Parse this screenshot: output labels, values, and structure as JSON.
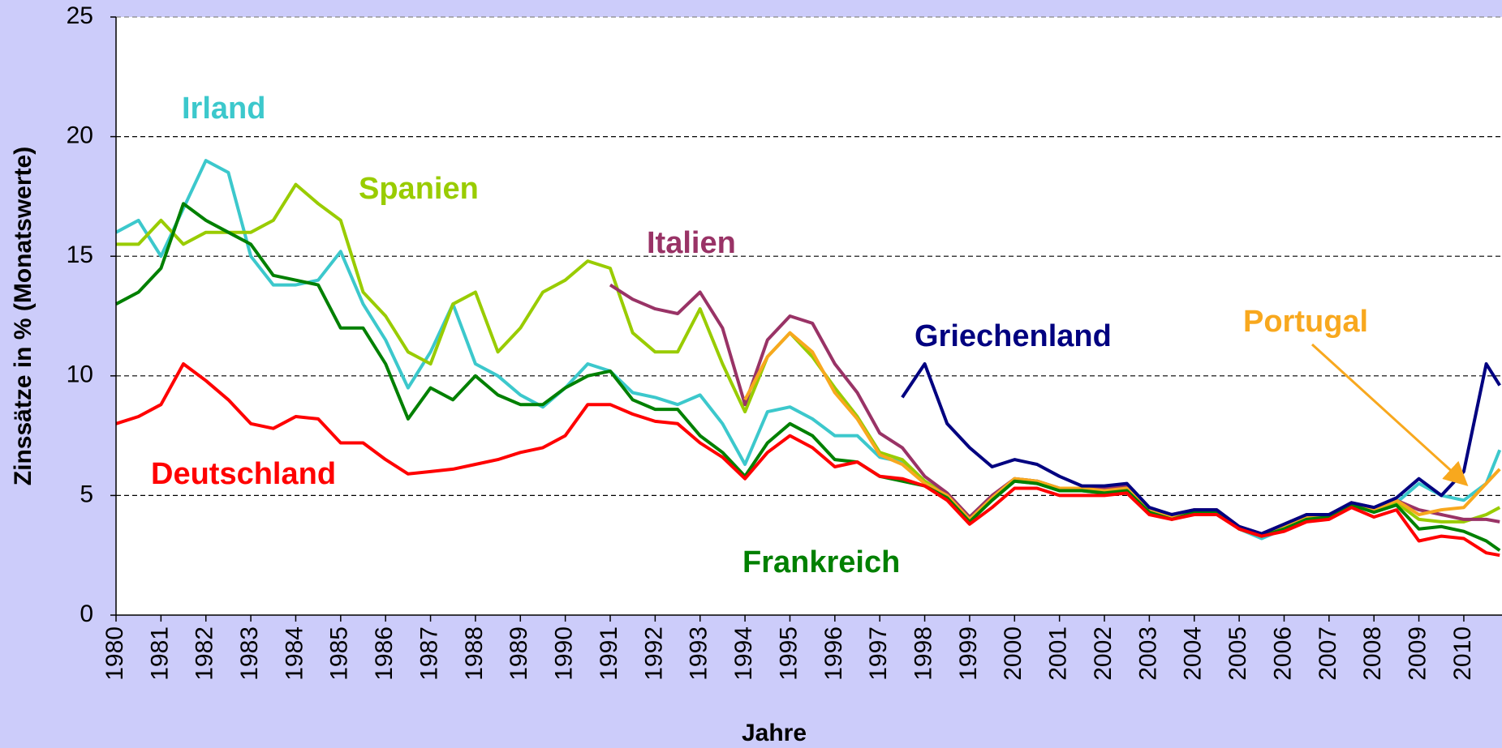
{
  "chart_data": {
    "type": "line",
    "ylabel": "Zinssätze in % (Monatswerte)",
    "xlabel": "Jahre",
    "xlim": [
      1980,
      2010.85
    ],
    "xticks": [
      1980,
      1981,
      1982,
      1983,
      1984,
      1985,
      1986,
      1987,
      1988,
      1989,
      1990,
      1991,
      1992,
      1993,
      1994,
      1995,
      1996,
      1997,
      1998,
      1999,
      2000,
      2001,
      2002,
      2003,
      2004,
      2005,
      2006,
      2007,
      2008,
      2009,
      2010
    ],
    "ylim": [
      0,
      25
    ],
    "yticks": [
      0,
      5,
      10,
      15,
      20,
      25
    ],
    "grid": true,
    "x": [
      1980,
      1980.5,
      1981,
      1981.5,
      1982,
      1982.5,
      1983,
      1983.5,
      1984,
      1984.5,
      1985,
      1985.5,
      1986,
      1986.5,
      1987,
      1987.5,
      1988,
      1988.5,
      1989,
      1989.5,
      1990,
      1990.5,
      1991,
      1991.5,
      1992,
      1992.5,
      1993,
      1993.5,
      1994,
      1994.5,
      1995,
      1995.5,
      1996,
      1996.5,
      1997,
      1997.5,
      1998,
      1998.5,
      1999,
      1999.5,
      2000,
      2000.5,
      2001,
      2001.5,
      2002,
      2002.5,
      2003,
      2003.5,
      2004,
      2004.5,
      2005,
      2005.5,
      2006,
      2006.5,
      2007,
      2007.5,
      2008,
      2008.5,
      2009,
      2009.5,
      2010,
      2010.5,
      2010.8
    ],
    "series": [
      {
        "name": "Irland",
        "color": "#3cc8cc",
        "values": [
          16,
          16.5,
          15,
          17,
          19,
          18.5,
          15,
          13.8,
          13.8,
          14,
          15.2,
          13,
          11.5,
          9.5,
          11,
          13,
          10.5,
          10,
          9.2,
          8.7,
          9.5,
          10.5,
          10.2,
          9.3,
          9.1,
          8.8,
          9.2,
          8,
          6.3,
          8.5,
          8.7,
          8.2,
          7.5,
          7.5,
          6.6,
          6.4,
          5.6,
          5,
          4,
          4.8,
          5.6,
          5.5,
          5.2,
          5.2,
          5.1,
          5.2,
          4.3,
          4.1,
          4.3,
          4.3,
          3.6,
          3.2,
          3.6,
          4,
          4.1,
          4.6,
          4.4,
          4.7,
          5.5,
          5,
          4.8,
          5.5,
          6.9
        ]
      },
      {
        "name": "Spanien",
        "color": "#99cc00",
        "values": [
          15.5,
          15.5,
          16.5,
          15.5,
          16,
          16,
          16,
          16.5,
          18,
          17.2,
          16.5,
          13.5,
          12.5,
          11,
          10.5,
          13,
          13.5,
          11,
          12,
          13.5,
          14,
          14.8,
          14.5,
          11.8,
          11,
          11,
          12.8,
          10.5,
          8.5,
          10.8,
          11.8,
          10.8,
          9.5,
          8.3,
          6.8,
          6.5,
          5.6,
          5,
          4,
          4.9,
          5.7,
          5.6,
          5.3,
          5.3,
          5.2,
          5.3,
          4.4,
          4.1,
          4.3,
          4.3,
          3.6,
          3.3,
          3.6,
          4,
          4.1,
          4.6,
          4.4,
          4.7,
          4,
          3.9,
          3.9,
          4.2,
          4.5
        ]
      },
      {
        "name": "Italien",
        "color": "#993366",
        "values": [
          null,
          null,
          null,
          null,
          null,
          null,
          null,
          null,
          null,
          null,
          null,
          null,
          null,
          null,
          null,
          null,
          null,
          null,
          null,
          null,
          null,
          null,
          13.8,
          13.2,
          12.8,
          12.6,
          13.5,
          12,
          8.8,
          11.5,
          12.5,
          12.2,
          10.5,
          9.3,
          7.6,
          7,
          5.8,
          5.1,
          4.1,
          5,
          5.7,
          5.6,
          5.3,
          5.3,
          5.3,
          5.4,
          4.4,
          4.2,
          4.4,
          4.4,
          3.7,
          3.4,
          3.8,
          4.2,
          4.2,
          4.7,
          4.5,
          4.8,
          4.4,
          4.2,
          4,
          4,
          3.9
        ]
      },
      {
        "name": "Portugal",
        "color": "#f8a81e",
        "values": [
          null,
          null,
          null,
          null,
          null,
          null,
          null,
          null,
          null,
          null,
          null,
          null,
          null,
          null,
          null,
          null,
          null,
          null,
          null,
          null,
          null,
          null,
          null,
          null,
          null,
          null,
          null,
          null,
          9,
          10.8,
          11.8,
          11,
          9.3,
          8.2,
          6.7,
          6.3,
          5.5,
          5,
          4,
          4.9,
          5.7,
          5.6,
          5.3,
          5.3,
          5.2,
          5.3,
          4.4,
          4.1,
          4.3,
          4.3,
          3.6,
          3.3,
          3.7,
          4.1,
          4.1,
          4.7,
          4.4,
          4.8,
          4.2,
          4.4,
          4.5,
          5.5,
          6.1
        ]
      },
      {
        "name": "Frankreich",
        "color": "#008000",
        "values": [
          13,
          13.5,
          14.5,
          17.2,
          16.5,
          16,
          15.5,
          14.2,
          14,
          13.8,
          12,
          12,
          10.5,
          8.2,
          9.5,
          9,
          10,
          9.2,
          8.8,
          8.8,
          9.5,
          10,
          10.2,
          9,
          8.6,
          8.6,
          7.5,
          6.8,
          5.8,
          7.2,
          8,
          7.5,
          6.5,
          6.4,
          5.8,
          5.6,
          5.4,
          4.9,
          3.9,
          4.8,
          5.6,
          5.5,
          5.2,
          5.2,
          5.1,
          5.2,
          4.3,
          4,
          4.3,
          4.3,
          3.6,
          3.3,
          3.6,
          4,
          4.1,
          4.6,
          4.3,
          4.6,
          3.6,
          3.7,
          3.5,
          3.1,
          2.7
        ]
      },
      {
        "name": "Griechenland",
        "color": "#000080",
        "values": [
          null,
          null,
          null,
          null,
          null,
          null,
          null,
          null,
          null,
          null,
          null,
          null,
          null,
          null,
          null,
          null,
          null,
          null,
          null,
          null,
          null,
          null,
          null,
          null,
          null,
          null,
          null,
          null,
          null,
          null,
          null,
          null,
          null,
          null,
          null,
          9.1,
          10.5,
          8,
          7,
          6.2,
          6.5,
          6.3,
          5.8,
          5.4,
          5.4,
          5.5,
          4.5,
          4.2,
          4.4,
          4.4,
          3.7,
          3.4,
          3.8,
          4.2,
          4.2,
          4.7,
          4.5,
          4.9,
          5.7,
          5,
          6,
          10.5,
          9.6
        ]
      },
      {
        "name": "Deutschland",
        "color": "#ff0000",
        "values": [
          8,
          8.3,
          8.8,
          10.5,
          9.8,
          9,
          8,
          7.8,
          8.3,
          8.2,
          7.2,
          7.2,
          6.5,
          5.9,
          6,
          6.1,
          6.3,
          6.5,
          6.8,
          7,
          7.5,
          8.8,
          8.8,
          8.4,
          8.1,
          8,
          7.2,
          6.6,
          5.7,
          6.8,
          7.5,
          7,
          6.2,
          6.4,
          5.8,
          5.7,
          5.4,
          4.8,
          3.8,
          4.5,
          5.3,
          5.3,
          5,
          5,
          5,
          5.1,
          4.2,
          4,
          4.2,
          4.2,
          3.6,
          3.3,
          3.5,
          3.9,
          4,
          4.5,
          4.1,
          4.4,
          3.1,
          3.3,
          3.2,
          2.6,
          2.5
        ]
      }
    ]
  }
}
